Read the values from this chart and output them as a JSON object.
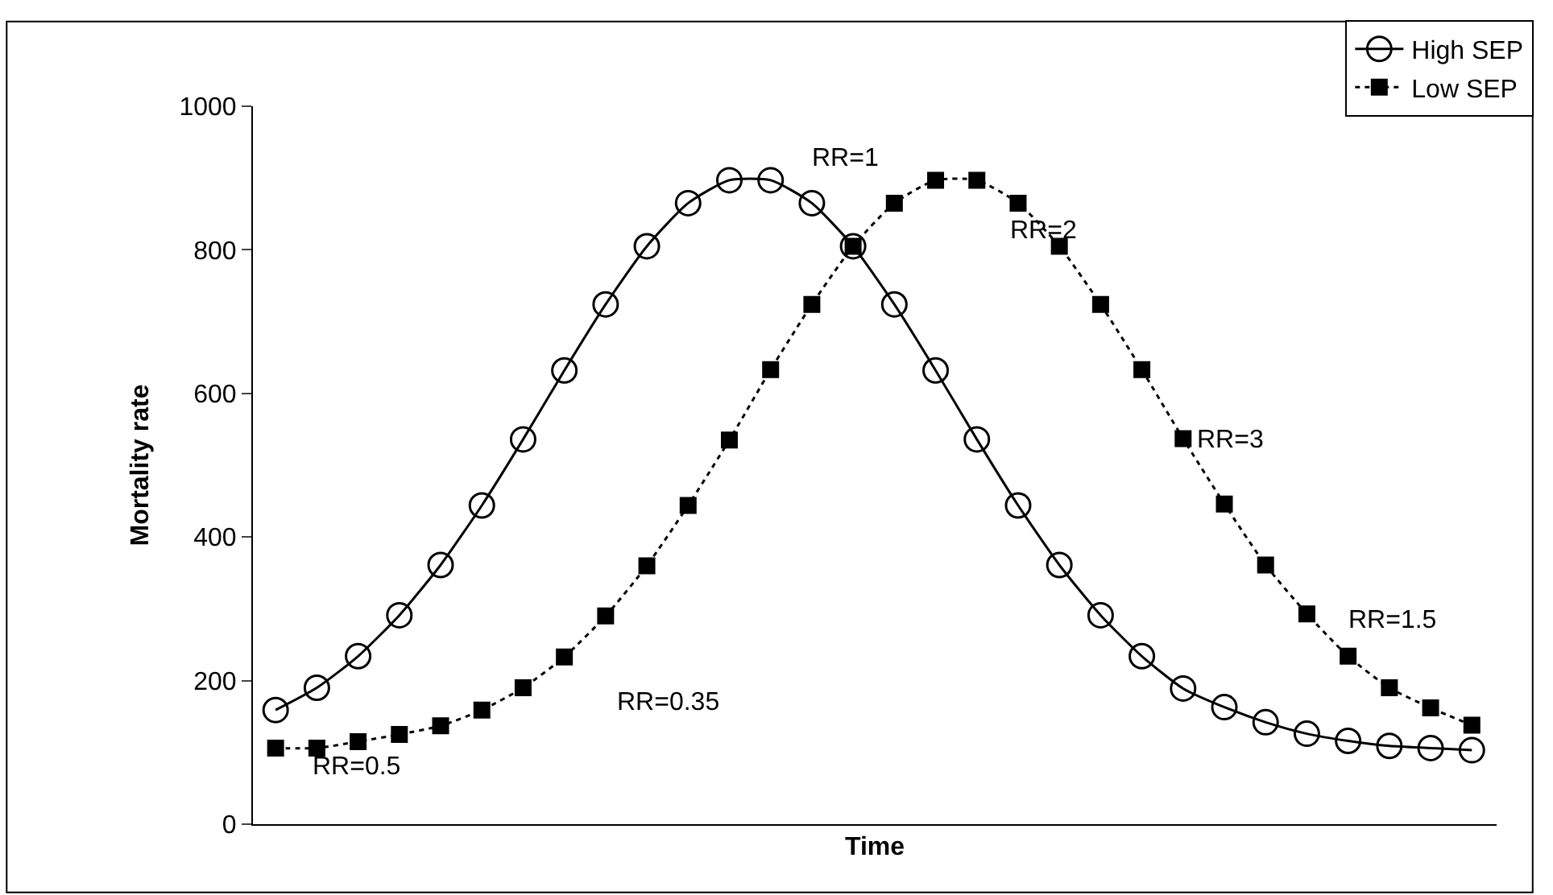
{
  "chart_data": {
    "type": "line",
    "xlabel": "Time",
    "ylabel": "Mortality rate",
    "categories": [
      null,
      null,
      null,
      null,
      null,
      null,
      null,
      null,
      null,
      null,
      null,
      null,
      null,
      null,
      null,
      null,
      null,
      null,
      null,
      null,
      null,
      null,
      null,
      null,
      null,
      null,
      null,
      null,
      null,
      null
    ],
    "series": [
      {
        "name": "High SEP",
        "color": "#000000",
        "marker": "circle",
        "line_style": "solid",
        "values": [
          159,
          190,
          234,
          291,
          361,
          444,
          536,
          632,
          724,
          805,
          865,
          897,
          897,
          865,
          805,
          724,
          632,
          536,
          444,
          361,
          291,
          234,
          189,
          163,
          142,
          126,
          116,
          109,
          106,
          103
        ]
      },
      {
        "name": "Low SEP",
        "color": "#000000",
        "marker": "square",
        "line_style": "dotted",
        "values": [
          106,
          106,
          115,
          125,
          137,
          159,
          190,
          233,
          290,
          360,
          444,
          535,
          633,
          724,
          805,
          865,
          897,
          897,
          865,
          805,
          724,
          633,
          537,
          446,
          361,
          293,
          234,
          190,
          162,
          138
        ]
      }
    ],
    "annotations": [
      "RR=1",
      "RR=2",
      "RR=3",
      "RR=1.5",
      "RR=0.35",
      "RR=0.5"
    ],
    "ylim": [
      0,
      1000
    ],
    "yticks": [
      0,
      200,
      400,
      600,
      800,
      1000
    ],
    "legend": "top right"
  }
}
